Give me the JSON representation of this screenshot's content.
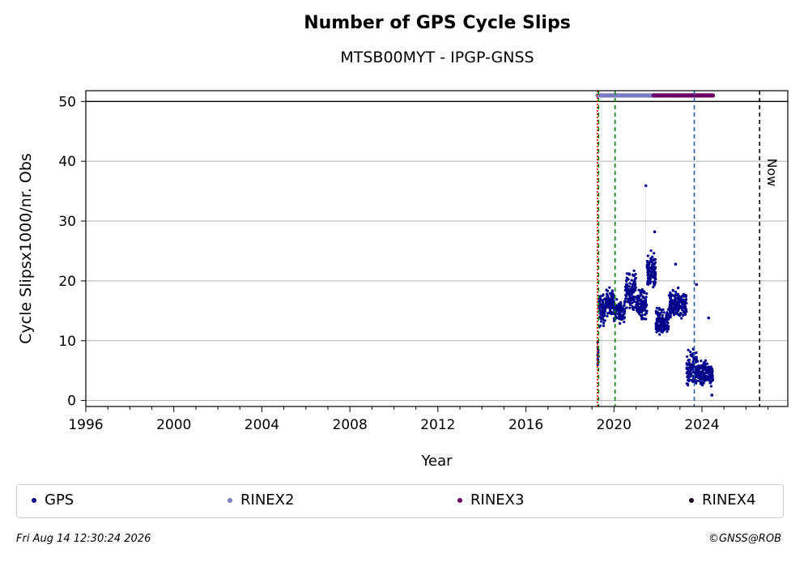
{
  "chart_data": {
    "type": "scatter",
    "title": "Number of GPS Cycle Slips",
    "subtitle": "MTSB00MYT - IPGP-GNSS",
    "xlabel": "Year",
    "ylabel": "Cycle Slipsx1000/nr. Obs",
    "xlim": [
      1996,
      2027.9
    ],
    "ylim": [
      -1,
      51.8
    ],
    "x_ticks": [
      "1996",
      "2000",
      "2004",
      "2008",
      "2012",
      "2016",
      "2020",
      "2024"
    ],
    "y_ticks": [
      "0",
      "10",
      "20",
      "30",
      "40",
      "50"
    ],
    "grid": "horizontal",
    "reference_line_y": 50,
    "series": [
      {
        "name": "GPS",
        "color": "#00008b",
        "segments": [
          {
            "x": [
              2019.25,
              2019.3
            ],
            "y_mean": 7.5,
            "y_spread": 2.0
          },
          {
            "x": [
              2019.3,
              2019.6
            ],
            "y_mean": 15.0,
            "y_spread": 2.2
          },
          {
            "x": [
              2019.6,
              2020.0
            ],
            "y_mean": 16.5,
            "y_spread": 1.8
          },
          {
            "x": [
              2020.0,
              2020.5
            ],
            "y_mean": 15.0,
            "y_spread": 1.5
          },
          {
            "x": [
              2020.5,
              2021.0
            ],
            "y_mean": 18.5,
            "y_spread": 2.5
          },
          {
            "x": [
              2021.0,
              2021.5
            ],
            "y_mean": 16.0,
            "y_spread": 2.0
          },
          {
            "x": [
              2021.5,
              2021.9
            ],
            "y_mean": 21.5,
            "y_spread": 2.5
          },
          {
            "x": [
              2021.9,
              2022.5
            ],
            "y_mean": 13.0,
            "y_spread": 2.0
          },
          {
            "x": [
              2022.5,
              2023.3
            ],
            "y_mean": 16.0,
            "y_spread": 2.0
          },
          {
            "x": [
              2023.3,
              2023.8
            ],
            "y_mean": 5.5,
            "y_spread": 2.5
          },
          {
            "x": [
              2023.8,
              2024.5
            ],
            "y_mean": 4.5,
            "y_spread": 1.8
          }
        ],
        "outliers": [
          [
            2021.45,
            35.9
          ],
          [
            2021.85,
            28.2
          ],
          [
            2022.8,
            22.8
          ],
          [
            2023.75,
            19.4
          ],
          [
            2024.3,
            13.8
          ],
          [
            2024.45,
            0.9
          ]
        ]
      },
      {
        "name": "RINEX2",
        "color": "#7b7bc1",
        "x_range": [
          2019.25,
          2021.8
        ],
        "y": 51
      },
      {
        "name": "RINEX3",
        "color": "#6b0064",
        "x_range": [
          2021.8,
          2024.5
        ],
        "y": 51
      },
      {
        "name": "RINEX4",
        "color": "#1a0014",
        "x_range": [],
        "y": 51
      }
    ],
    "vertical_lines": [
      {
        "x": 2019.25,
        "color": "#ff0000",
        "style": "dotted"
      },
      {
        "x": 2019.3,
        "color": "#007f00",
        "style": "dashed"
      },
      {
        "x": 2020.05,
        "color": "#007f00",
        "style": "dashed"
      },
      {
        "x": 2023.65,
        "color": "#1f5fa8",
        "style": "dashed"
      },
      {
        "x": 2026.62,
        "color": "#000000",
        "style": "dashed",
        "label": "Now"
      }
    ]
  },
  "legend": [
    "GPS",
    "RINEX2",
    "RINEX3",
    "RINEX4"
  ],
  "footer": {
    "timestamp": "Fri Aug 14 12:30:24 2026",
    "credit": "©GNSS@ROB"
  }
}
